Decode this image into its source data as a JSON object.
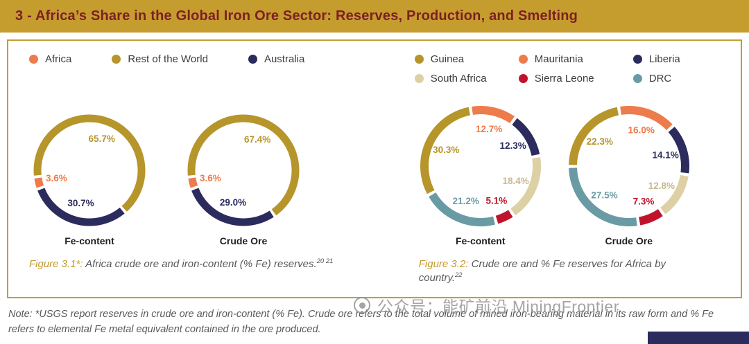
{
  "title_bar": {
    "text": "3 - Africa’s Share in the Global Iron Ore Sector: Reserves, Production, and Smelting"
  },
  "colors": {
    "gold": "#B6952B",
    "orange": "#EE7B4B",
    "navy": "#2B2B5E",
    "beige": "#DDD0A4",
    "red": "#C0132B",
    "teal": "#6A9BA5",
    "title_bg": "#C59D2F",
    "title_text": "#7D1F23"
  },
  "legend_left": {
    "items": [
      {
        "label": "Africa",
        "color": "#EE7B4B"
      },
      {
        "label": "Rest of the World",
        "color": "#B6952B"
      },
      {
        "label": "Australia",
        "color": "#2B2B5E"
      }
    ]
  },
  "legend_right": {
    "items": [
      {
        "label": "Guinea",
        "color": "#B6952B"
      },
      {
        "label": "Mauritania",
        "color": "#EE7B4B"
      },
      {
        "label": "Liberia",
        "color": "#2B2B5E"
      },
      {
        "label": "South Africa",
        "color": "#DDD0A4"
      },
      {
        "label": "Sierra Leone",
        "color": "#C0132B"
      },
      {
        "label": "DRC",
        "color": "#6A9BA5"
      }
    ]
  },
  "chart_data": [
    {
      "type": "donut",
      "figure": "3.1",
      "title": "Fe-content",
      "start_angle": 250,
      "segments": [
        {
          "name": "Africa",
          "value": 3.6,
          "label": "3.6%",
          "color": "#EE7B4B",
          "label_color": "#EE7B4B"
        },
        {
          "name": "Rest of the World",
          "value": 65.7,
          "label": "65.7%",
          "color": "#B6952B",
          "label_color": "#B6952B"
        },
        {
          "name": "Australia",
          "value": 30.7,
          "label": "30.7%",
          "color": "#2B2B5E",
          "label_color": "#2B2B5E"
        }
      ]
    },
    {
      "type": "donut",
      "figure": "3.1",
      "title": "Crude Ore",
      "start_angle": 250,
      "segments": [
        {
          "name": "Africa",
          "value": 3.6,
          "label": "3.6%",
          "color": "#EE7B4B",
          "label_color": "#EE7B4B"
        },
        {
          "name": "Rest of the World",
          "value": 67.4,
          "label": "67.4%",
          "color": "#B6952B",
          "label_color": "#B6952B"
        },
        {
          "name": "Australia",
          "value": 29.0,
          "label": "29.0%",
          "color": "#2B2B5E",
          "label_color": "#2B2B5E"
        }
      ]
    },
    {
      "type": "donut",
      "figure": "3.2",
      "title": "Fe-content",
      "start_angle": 350,
      "segments": [
        {
          "name": "Mauritania",
          "value": 12.7,
          "label": "12.7%",
          "color": "#EE7B4B",
          "label_color": "#EE7B4B"
        },
        {
          "name": "Liberia",
          "value": 12.3,
          "label": "12.3%",
          "color": "#2B2B5E",
          "label_color": "#2B2B5E"
        },
        {
          "name": "South Africa",
          "value": 18.4,
          "label": "18.4%",
          "color": "#DDD0A4",
          "label_color": "#C8B98C"
        },
        {
          "name": "Sierra Leone",
          "value": 5.1,
          "label": "5.1%",
          "color": "#C0132B",
          "label_color": "#C0132B"
        },
        {
          "name": "DRC",
          "value": 21.2,
          "label": "21.2%",
          "color": "#6A9BA5",
          "label_color": "#6A9BA5"
        },
        {
          "name": "Guinea",
          "value": 30.3,
          "label": "30.3%",
          "color": "#B6952B",
          "label_color": "#B6952B"
        }
      ]
    },
    {
      "type": "donut",
      "figure": "3.2",
      "title": "Crude Ore",
      "start_angle": 350,
      "segments": [
        {
          "name": "Mauritania",
          "value": 16.0,
          "label": "16.0%",
          "color": "#EE7B4B",
          "label_color": "#EE7B4B"
        },
        {
          "name": "Liberia",
          "value": 14.1,
          "label": "14.1%",
          "color": "#2B2B5E",
          "label_color": "#2B2B5E"
        },
        {
          "name": "South Africa",
          "value": 12.8,
          "label": "12.8%",
          "color": "#DDD0A4",
          "label_color": "#C8B98C"
        },
        {
          "name": "Sierra Leone",
          "value": 7.3,
          "label": "7.3%",
          "color": "#C0132B",
          "label_color": "#C0132B"
        },
        {
          "name": "DRC",
          "value": 27.5,
          "label": "27.5%",
          "color": "#6A9BA5",
          "label_color": "#6A9BA5"
        },
        {
          "name": "Guinea",
          "value": 22.3,
          "label": "22.3%",
          "color": "#B6952B",
          "label_color": "#B6952B"
        }
      ]
    }
  ],
  "captions": {
    "fig31_label": "Figure 3.1*:",
    "fig31_text": " Africa crude ore and iron-content (% Fe) reserves.",
    "fig31_refs": "20 21",
    "fig32_label": "Figure 3.2:",
    "fig32_text": " Crude ore and % Fe reserves for Africa by country.",
    "fig32_refs": "22"
  },
  "note": {
    "text": "Note: *USGS report reserves in crude ore and iron-content (% Fe). Crude ore refers to the total volume of mined iron-bearing material in its raw form and % Fe refers to elemental Fe metal equivalent contained in the ore produced."
  },
  "watermark": {
    "text": "公众号：能矿前沿 MiningFrontier"
  }
}
